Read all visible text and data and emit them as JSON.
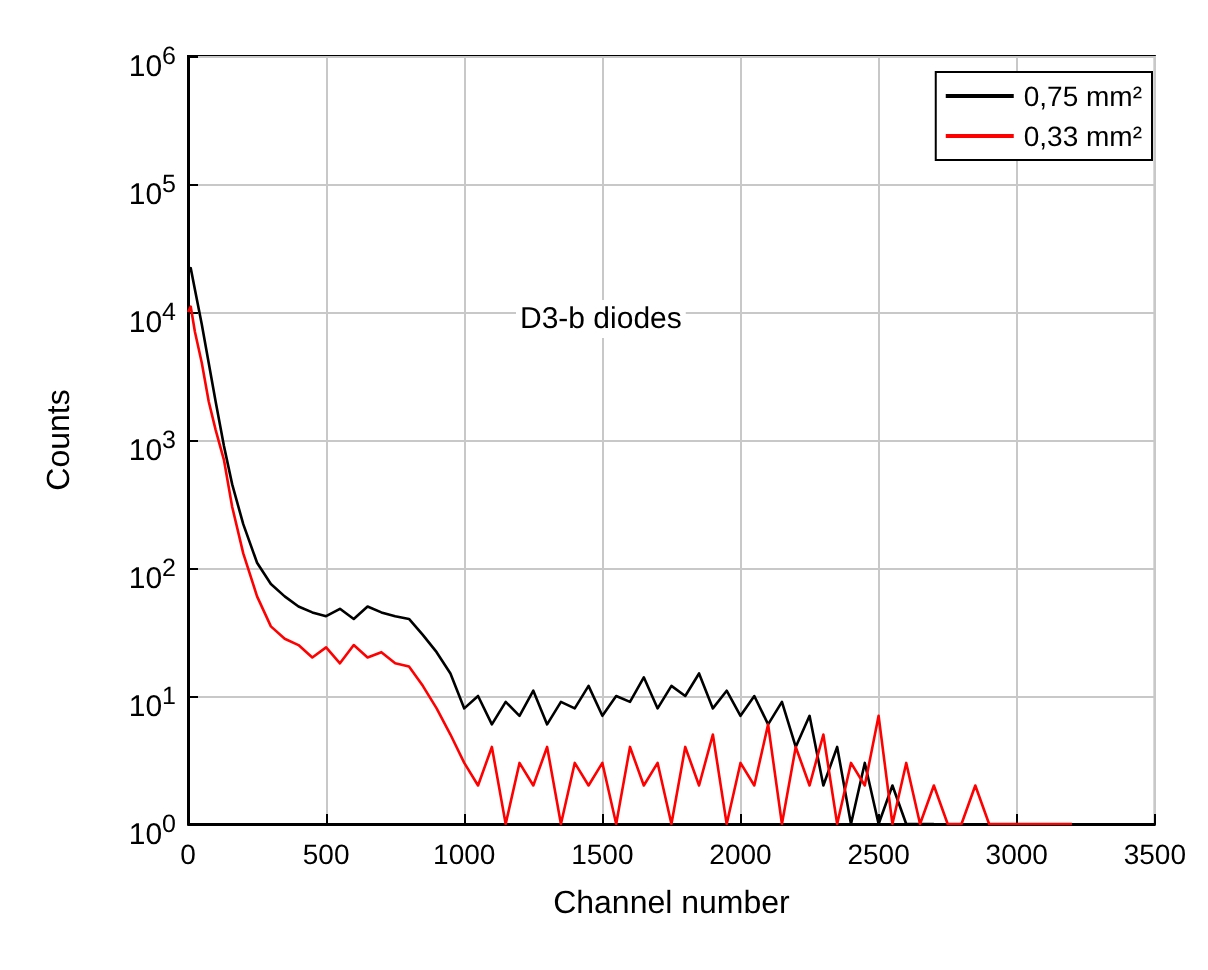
{
  "chart_data": {
    "type": "line",
    "xlabel": "Channel number",
    "ylabel": "Counts",
    "annotations": [
      "D3-b diodes"
    ],
    "log": "y",
    "grid": true,
    "legend": "top right",
    "marker": "none",
    "line_style": "solid",
    "xlim": [
      0,
      3500
    ],
    "xticks": [
      0,
      500,
      1000,
      1500,
      2000,
      2500,
      3000,
      3500
    ],
    "ylim": [
      1,
      1000000
    ],
    "yticks": [
      {
        "value": 1,
        "label": "10$^{0}$"
      },
      {
        "value": 10,
        "label": "10$^{1}$"
      },
      {
        "value": 100,
        "label": "10$^{2}$"
      },
      {
        "value": 1000,
        "label": "10$^{3}$"
      },
      {
        "value": 10000,
        "label": "10$^{4}$"
      },
      {
        "value": 100000,
        "label": "10$^{5}$"
      },
      {
        "value": 1000000,
        "label": "10$^{6}$"
      }
    ],
    "series": [
      {
        "name": "0,75 mm²",
        "color": "#000000",
        "x": [
          0,
          10,
          25,
          50,
          75,
          100,
          130,
          160,
          200,
          250,
          300,
          350,
          400,
          450,
          500,
          550,
          600,
          650,
          700,
          750,
          800,
          850,
          900,
          950,
          1000,
          1050,
          1100,
          1150,
          1200,
          1250,
          1300,
          1350,
          1400,
          1450,
          1500,
          1550,
          1600,
          1650,
          1700,
          1750,
          1800,
          1850,
          1900,
          1950,
          2000,
          2050,
          2100,
          2150,
          2200,
          2250,
          2300,
          2350,
          2400,
          2450,
          2500,
          2550,
          2600,
          2650,
          2700
        ],
        "values": [
          20000,
          22000,
          15000,
          8000,
          4000,
          2000,
          900,
          450,
          220,
          110,
          75,
          60,
          50,
          45,
          42,
          48,
          40,
          50,
          45,
          42,
          40,
          30,
          22,
          15,
          8,
          10,
          6,
          9,
          7,
          11,
          6,
          9,
          8,
          12,
          7,
          10,
          9,
          14,
          8,
          12,
          10,
          15,
          8,
          11,
          7,
          10,
          6,
          9,
          4,
          7,
          2,
          4,
          1,
          3,
          1,
          2,
          1,
          1,
          1
        ]
      },
      {
        "name": "0,33 mm²",
        "color": "#ff0000",
        "x": [
          0,
          10,
          25,
          50,
          75,
          100,
          130,
          160,
          200,
          250,
          300,
          350,
          400,
          450,
          500,
          550,
          600,
          650,
          700,
          750,
          800,
          850,
          900,
          950,
          1000,
          1050,
          1100,
          1150,
          1200,
          1250,
          1300,
          1350,
          1400,
          1450,
          1500,
          1550,
          1600,
          1650,
          1700,
          1750,
          1800,
          1850,
          1900,
          1950,
          2000,
          2050,
          2100,
          2150,
          2200,
          2250,
          2300,
          2350,
          2400,
          2450,
          2500,
          2550,
          2600,
          2650,
          2700,
          2750,
          2800,
          2850,
          2900,
          3000,
          3100,
          3200
        ],
        "values": [
          10000,
          11000,
          7000,
          4000,
          2000,
          1200,
          700,
          300,
          130,
          60,
          35,
          28,
          25,
          20,
          24,
          18,
          25,
          20,
          22,
          18,
          17,
          12,
          8,
          5,
          3,
          2,
          4,
          1,
          3,
          2,
          4,
          1,
          3,
          2,
          3,
          1,
          4,
          2,
          3,
          1,
          4,
          2,
          5,
          1,
          3,
          2,
          6,
          1,
          4,
          2,
          5,
          1,
          3,
          2,
          7,
          1,
          3,
          1,
          2,
          1,
          1,
          2,
          1,
          1,
          1,
          1
        ]
      }
    ]
  }
}
